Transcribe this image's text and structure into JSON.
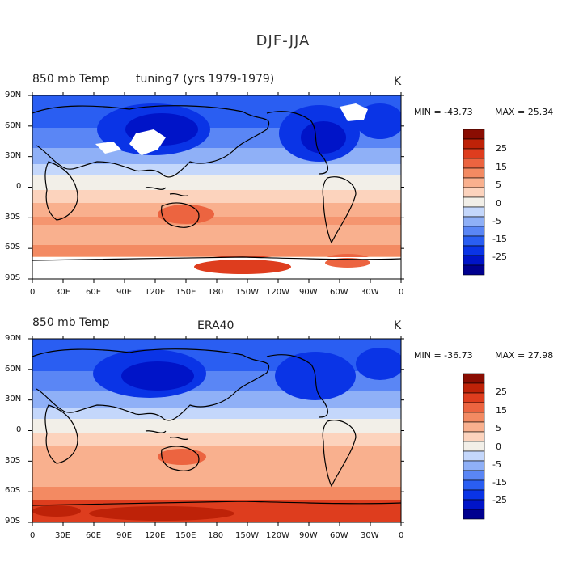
{
  "title": "DJF-JJA",
  "colors": {
    "scale": [
      "#00008f",
      "#0014c8",
      "#0a34e6",
      "#2a5ef2",
      "#5a86f5",
      "#8fb0f7",
      "#c4d7fb",
      "#f2efe8",
      "#fcd3bd",
      "#f9b08e",
      "#f38a62",
      "#ec6440",
      "#de3d1e",
      "#be2208",
      "#8a0d02"
    ],
    "land_outline": "#000000",
    "missing": "#ffffff"
  },
  "colorbar": {
    "labels": [
      "25",
      "15",
      "5",
      "0",
      "-5",
      "-15",
      "-25"
    ]
  },
  "axes": {
    "y_ticks": [
      "90N",
      "60N",
      "30N",
      "0",
      "30S",
      "60S",
      "90S"
    ],
    "x_ticks": [
      "0",
      "30E",
      "60E",
      "90E",
      "120E",
      "150E",
      "180",
      "150W",
      "120W",
      "90W",
      "60W",
      "30W",
      "0"
    ]
  },
  "panels": [
    {
      "variable": "850 mb Temp",
      "case": "tuning7 (yrs 1979-1979)",
      "units": "K",
      "min_label": "MIN = -43.73",
      "max_label": "MAX =  25.34"
    },
    {
      "variable": "850 mb Temp",
      "case": "ERA40",
      "units": "K",
      "min_label": "MIN = -36.73",
      "max_label": "MAX =  27.98"
    }
  ]
}
